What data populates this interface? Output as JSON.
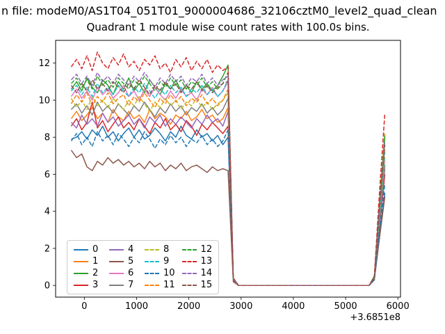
{
  "title": {
    "line1": "n file: modeM0/AS1T04_051T01_9000004686_32106cztM0_level2_quad_clean",
    "line2": "Quadrant 1 module wise count rates with 100.0s bins."
  },
  "chart_data": {
    "type": "line",
    "title": "Quadrant 1 module wise count rates with 100.0s bins.",
    "xlabel": "",
    "ylabel": "",
    "x_offset_label": "+3.6851e8",
    "xlim": [
      -550,
      6050
    ],
    "ylim": [
      -0.63,
      13.23
    ],
    "xticks": [
      0,
      1000,
      2000,
      3000,
      4000,
      5000,
      6000
    ],
    "yticks": [
      0,
      2,
      4,
      6,
      8,
      10,
      12
    ],
    "grid": false,
    "legend_position": "lower left",
    "legend_columns": 4,
    "x": [
      -250,
      -150,
      -50,
      50,
      150,
      250,
      350,
      450,
      550,
      650,
      750,
      850,
      950,
      1050,
      1150,
      1250,
      1350,
      1450,
      1550,
      1650,
      1750,
      1850,
      1950,
      2050,
      2150,
      2250,
      2350,
      2450,
      2550,
      2650,
      2750,
      2850,
      2950,
      3250,
      3750,
      4250,
      4750,
      5250,
      5450,
      5550,
      5650,
      5750
    ],
    "series": [
      {
        "name": "0",
        "color": "#1f77b4",
        "dashed": false,
        "values": [
          7.9,
          8.0,
          8.3,
          7.9,
          8.4,
          8.1,
          8.6,
          8.0,
          8.3,
          7.8,
          8.2,
          8.5,
          8.0,
          8.4,
          7.9,
          8.1,
          8.5,
          8.2,
          7.8,
          8.3,
          8.0,
          8.6,
          8.1,
          7.9,
          8.4,
          8.0,
          8.2,
          7.8,
          8.1,
          7.6,
          8.0,
          0.3,
          0,
          0,
          0,
          0,
          0,
          0,
          0,
          0.4,
          2.8,
          5.0
        ]
      },
      {
        "name": "1",
        "color": "#ff7f0e",
        "dashed": false,
        "values": [
          9.0,
          9.4,
          8.9,
          9.2,
          9.6,
          9.0,
          9.3,
          8.8,
          9.5,
          9.1,
          8.9,
          9.4,
          9.0,
          9.2,
          8.8,
          9.5,
          9.0,
          9.3,
          9.1,
          8.7,
          9.2,
          9.0,
          9.4,
          8.9,
          9.1,
          9.5,
          9.0,
          9.2,
          8.8,
          9.0,
          9.6,
          0.3,
          0,
          0,
          0,
          0,
          0,
          0,
          0,
          0.5,
          4.5,
          8.2
        ]
      },
      {
        "name": "2",
        "color": "#2ca02c",
        "dashed": false,
        "values": [
          10.6,
          11.0,
          10.5,
          11.2,
          10.7,
          10.4,
          11.1,
          10.8,
          10.3,
          11.0,
          10.6,
          11.2,
          10.5,
          10.9,
          10.4,
          11.1,
          10.7,
          10.3,
          10.9,
          10.6,
          11.1,
          10.5,
          10.8,
          10.4,
          11.0,
          10.6,
          10.9,
          10.5,
          10.8,
          11.3,
          11.9,
          0.4,
          0,
          0,
          0,
          0,
          0,
          0,
          0,
          0.5,
          4.4,
          8.1
        ]
      },
      {
        "name": "3",
        "color": "#d62728",
        "dashed": false,
        "values": [
          8.6,
          9.0,
          8.4,
          8.8,
          9.9,
          8.5,
          8.9,
          8.3,
          8.7,
          9.1,
          8.5,
          8.8,
          8.4,
          9.0,
          8.6,
          8.2,
          8.8,
          8.5,
          9.0,
          8.4,
          8.7,
          8.3,
          8.9,
          8.6,
          8.1,
          8.7,
          8.4,
          8.8,
          8.5,
          8.2,
          8.6,
          0.3,
          0,
          0,
          0,
          0,
          0,
          0,
          0,
          0.4,
          3.3,
          6.0
        ]
      },
      {
        "name": "4",
        "color": "#9467bd",
        "dashed": false,
        "values": [
          8.8,
          8.5,
          9.2,
          8.7,
          9.0,
          8.6,
          9.3,
          8.8,
          9.1,
          8.6,
          8.9,
          9.2,
          8.7,
          9.0,
          8.5,
          9.1,
          8.8,
          9.2,
          8.6,
          9.0,
          8.7,
          9.1,
          8.8,
          8.5,
          9.0,
          8.7,
          9.2,
          8.8,
          9.0,
          8.6,
          9.4,
          0.3,
          0,
          0,
          0,
          0,
          0,
          0,
          0,
          0.4,
          3.5,
          6.3
        ]
      },
      {
        "name": "5",
        "color": "#8c564b",
        "dashed": false,
        "values": [
          7.3,
          6.9,
          7.1,
          6.4,
          6.2,
          6.7,
          6.5,
          6.9,
          6.6,
          6.8,
          6.5,
          6.7,
          6.4,
          6.6,
          6.3,
          6.7,
          6.4,
          6.6,
          6.2,
          6.5,
          6.3,
          6.6,
          6.2,
          6.4,
          6.5,
          6.3,
          6.1,
          6.4,
          6.2,
          6.3,
          6.2,
          0.2,
          0,
          0,
          0,
          0,
          0,
          0,
          0,
          0.3,
          2.6,
          4.8
        ]
      },
      {
        "name": "6",
        "color": "#e377c2",
        "dashed": false,
        "values": [
          10.2,
          10.6,
          10.1,
          10.5,
          10.0,
          10.7,
          10.3,
          10.6,
          10.1,
          10.4,
          10.8,
          10.2,
          10.5,
          10.0,
          10.6,
          10.2,
          10.7,
          10.3,
          10.0,
          10.5,
          10.1,
          10.6,
          10.2,
          10.4,
          10.0,
          10.6,
          10.3,
          10.7,
          10.2,
          10.5,
          11.0,
          0.3,
          0,
          0,
          0,
          0,
          0,
          0,
          0,
          0.4,
          3.7,
          6.8
        ]
      },
      {
        "name": "7",
        "color": "#7f7f7f",
        "dashed": false,
        "values": [
          9.5,
          9.8,
          9.3,
          9.7,
          9.2,
          9.9,
          9.4,
          9.7,
          9.3,
          9.8,
          9.5,
          9.2,
          9.7,
          9.4,
          9.9,
          9.5,
          9.1,
          9.6,
          9.3,
          9.8,
          9.4,
          9.7,
          9.2,
          9.6,
          9.4,
          9.8,
          9.3,
          9.6,
          9.2,
          9.5,
          10.1,
          0.3,
          0,
          0,
          0,
          0,
          0,
          0,
          0,
          0.4,
          3.6,
          6.5
        ]
      },
      {
        "name": "8",
        "color": "#bcbd22",
        "dashed": true,
        "values": [
          10.1,
          9.6,
          10.0,
          9.5,
          10.2,
          9.7,
          10.0,
          9.6,
          10.1,
          9.8,
          9.5,
          10.0,
          9.7,
          10.2,
          9.8,
          9.4,
          9.9,
          9.6,
          10.1,
          9.7,
          10.0,
          9.5,
          9.9,
          9.7,
          10.1,
          9.6,
          9.9,
          9.5,
          9.8,
          10.0,
          10.4,
          0.3,
          0,
          0,
          0,
          0,
          0,
          0,
          0,
          0.4,
          3.8,
          7.0
        ]
      },
      {
        "name": "9",
        "color": "#17becf",
        "dashed": true,
        "values": [
          10.5,
          10.8,
          10.3,
          10.7,
          10.2,
          10.9,
          10.4,
          10.7,
          10.3,
          10.8,
          10.5,
          10.2,
          10.7,
          10.4,
          10.9,
          10.5,
          10.1,
          10.6,
          10.3,
          10.8,
          10.4,
          10.7,
          10.2,
          10.6,
          10.4,
          10.8,
          10.3,
          10.6,
          10.2,
          10.5,
          11.1,
          0.3,
          0,
          0,
          0,
          0,
          0,
          0,
          0,
          0.4,
          3.9,
          7.2
        ]
      },
      {
        "name": "10",
        "color": "#1f77b4",
        "dashed": true,
        "values": [
          7.8,
          8.2,
          7.6,
          8.0,
          7.5,
          8.3,
          7.8,
          8.1,
          7.6,
          8.2,
          7.9,
          7.5,
          8.0,
          7.7,
          8.3,
          7.9,
          7.4,
          7.9,
          7.6,
          8.1,
          7.7,
          8.0,
          7.5,
          7.9,
          7.7,
          8.1,
          7.6,
          7.9,
          7.5,
          7.8,
          8.4,
          0.3,
          0,
          0,
          0,
          0,
          0,
          0,
          0,
          0.3,
          3.0,
          5.5
        ]
      },
      {
        "name": "11",
        "color": "#ff7f0e",
        "dashed": true,
        "values": [
          9.8,
          10.3,
          9.9,
          10.4,
          9.7,
          10.2,
          9.9,
          10.4,
          9.8,
          10.1,
          10.3,
          9.7,
          10.2,
          9.9,
          10.4,
          10.0,
          9.6,
          10.1,
          9.8,
          10.3,
          9.9,
          10.2,
          9.7,
          10.1,
          9.9,
          10.3,
          9.8,
          10.1,
          9.7,
          10.0,
          10.6,
          0.3,
          0,
          0,
          0,
          0,
          0,
          0,
          0,
          0.4,
          4.1,
          7.5
        ]
      },
      {
        "name": "12",
        "color": "#2ca02c",
        "dashed": true,
        "values": [
          10.9,
          11.2,
          10.7,
          11.1,
          10.6,
          11.3,
          10.8,
          11.1,
          10.7,
          11.2,
          10.9,
          10.6,
          11.1,
          10.8,
          11.3,
          10.9,
          10.5,
          11.0,
          10.7,
          11.2,
          10.8,
          11.1,
          10.6,
          11.0,
          10.8,
          11.2,
          10.7,
          11.0,
          10.6,
          10.9,
          11.5,
          0.4,
          0,
          0,
          0,
          0,
          0,
          0,
          0,
          0.4,
          4.4,
          8.0
        ]
      },
      {
        "name": "13",
        "color": "#d62728",
        "dashed": true,
        "values": [
          11.8,
          12.2,
          11.7,
          12.4,
          11.6,
          12.6,
          12.0,
          11.7,
          12.3,
          11.9,
          12.5,
          11.8,
          12.1,
          11.6,
          12.2,
          11.9,
          12.4,
          11.7,
          12.0,
          11.5,
          12.2,
          11.8,
          12.3,
          11.6,
          12.1,
          11.7,
          12.2,
          11.5,
          11.9,
          11.6,
          11.8,
          0.4,
          0,
          0,
          0,
          0,
          0,
          0,
          0,
          0.5,
          5.1,
          9.3
        ]
      },
      {
        "name": "14",
        "color": "#9467bd",
        "dashed": true,
        "values": [
          11.1,
          11.4,
          10.9,
          11.3,
          10.8,
          11.5,
          11.0,
          11.3,
          10.9,
          11.4,
          11.1,
          10.8,
          11.3,
          11.0,
          11.5,
          11.1,
          10.7,
          11.2,
          10.9,
          11.4,
          11.0,
          11.3,
          10.8,
          11.2,
          11.0,
          11.4,
          10.9,
          11.2,
          10.8,
          11.1,
          11.3,
          0.4,
          0,
          0,
          0,
          0,
          0,
          0,
          0,
          0.4,
          4.3,
          7.8
        ]
      },
      {
        "name": "15",
        "color": "#8c564b",
        "dashed": true,
        "values": [
          10.8,
          10.4,
          10.9,
          10.5,
          11.1,
          10.6,
          10.9,
          10.5,
          11.0,
          10.7,
          10.4,
          10.9,
          10.6,
          11.1,
          10.7,
          10.3,
          10.8,
          10.5,
          11.0,
          10.6,
          10.9,
          10.4,
          10.8,
          10.6,
          11.0,
          10.5,
          10.8,
          10.4,
          10.7,
          10.9,
          11.0,
          0.3,
          0,
          0,
          0,
          0,
          0,
          0,
          0,
          0.4,
          4.2,
          7.6
        ]
      }
    ]
  }
}
